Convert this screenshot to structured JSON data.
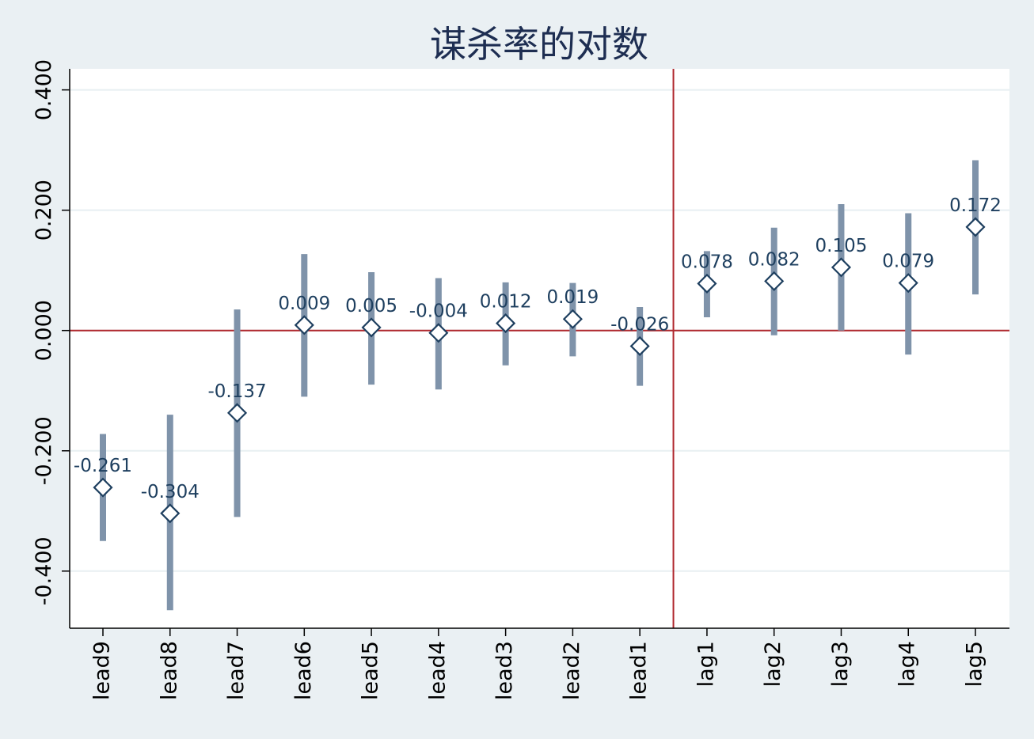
{
  "chart_data": {
    "type": "scatter",
    "title": "谋杀率的对数",
    "xlabel": "",
    "ylabel": "",
    "categories": [
      "lead9",
      "lead8",
      "lead7",
      "lead6",
      "lead5",
      "lead4",
      "lead3",
      "lead2",
      "lead1",
      "lag1",
      "lag2",
      "lag3",
      "lag4",
      "lag5"
    ],
    "estimates": [
      -0.261,
      -0.304,
      -0.137,
      0.009,
      0.005,
      -0.004,
      0.012,
      0.019,
      -0.026,
      0.078,
      0.082,
      0.105,
      0.079,
      0.172
    ],
    "point_labels": [
      "-0.261",
      "-0.304",
      "-0.137",
      "0.009",
      "0.005",
      "-0.004",
      "0.012",
      "0.019",
      "-0.026",
      "0.078",
      "0.082",
      "0.105",
      "0.079",
      "0.172"
    ],
    "ci_lower": [
      -0.35,
      -0.465,
      -0.31,
      -0.11,
      -0.09,
      -0.098,
      -0.058,
      -0.043,
      -0.092,
      0.022,
      -0.008,
      0.0,
      -0.04,
      0.06
    ],
    "ci_upper": [
      -0.172,
      -0.14,
      0.035,
      0.127,
      0.097,
      0.087,
      0.08,
      0.079,
      0.039,
      0.132,
      0.171,
      0.21,
      0.195,
      0.283
    ],
    "ylim": [
      -0.495,
      0.435
    ],
    "yticks": [
      0.4,
      0.2,
      0.0,
      -0.2,
      -0.4
    ],
    "ytick_labels": [
      "0.400",
      "0.200",
      "0.000",
      "-0.200",
      "-0.400"
    ],
    "reference_lines": {
      "horizontal_y": 0.0,
      "vertical_between": [
        "lead1",
        "lag1"
      ]
    },
    "grid": true,
    "colors": {
      "background": "#eaf0f3",
      "plot_background": "#ffffff",
      "grid": "#e8eff2",
      "ci_bar": "#7f93aa",
      "marker": "#1e3f5f",
      "label": "#1e3f5f",
      "reference_line": "#b0282e",
      "title": "#1e2e52",
      "axis": "#000000"
    }
  }
}
